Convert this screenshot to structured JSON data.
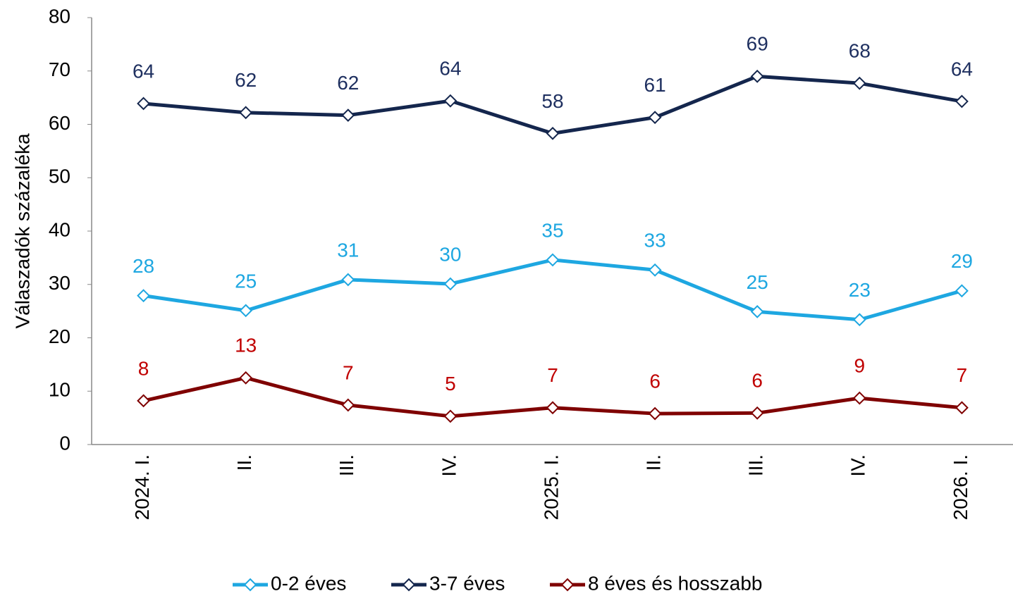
{
  "chart_data": {
    "type": "line",
    "ylabel": "Válaszadók százaléka",
    "categories": [
      "2024. I.",
      "II.",
      "III.",
      "IV.",
      "2025. I.",
      "II.",
      "III.",
      "IV.",
      "2026. I."
    ],
    "series": [
      {
        "name": "0-2 éves",
        "color": "#1ea7e1",
        "label_color": "#1ea7e1",
        "values": [
          27.9,
          25.1,
          30.9,
          30.1,
          34.6,
          32.7,
          24.9,
          23.4,
          28.8
        ],
        "value_labels": [
          "28",
          "25",
          "31",
          "30",
          "35",
          "33",
          "25",
          "23",
          "29"
        ]
      },
      {
        "name": "3-7 éves",
        "color": "#14264d",
        "label_color": "#1f3060",
        "values": [
          63.9,
          62.2,
          61.7,
          64.4,
          58.3,
          61.3,
          69.0,
          67.7,
          64.3
        ],
        "value_labels": [
          "64",
          "62",
          "62",
          "64",
          "58",
          "61",
          "69",
          "68",
          "64"
        ]
      },
      {
        "name": "8 éves és hosszabb",
        "color": "#7f0000",
        "label_color": "#c00000",
        "values": [
          8.2,
          12.5,
          7.4,
          5.3,
          6.9,
          5.8,
          5.9,
          8.7,
          6.9
        ],
        "value_labels": [
          "8",
          "13",
          "7",
          "5",
          "7",
          "6",
          "6",
          "9",
          "7"
        ]
      }
    ],
    "ylim": [
      0,
      80
    ],
    "yticks": [
      0,
      10,
      20,
      30,
      40,
      50,
      60,
      70,
      80
    ],
    "grid": false,
    "legend": "bottom"
  }
}
